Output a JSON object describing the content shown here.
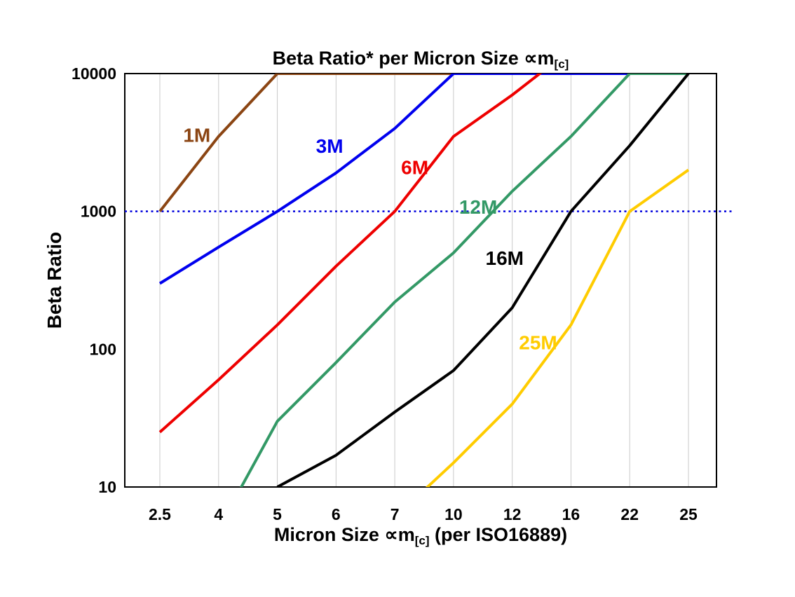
{
  "chart_data": {
    "type": "line",
    "title": {
      "text": "Beta Ratio* per Micron Size ∝m",
      "subscript": "[c]"
    },
    "xlabel": {
      "text": "Micron Size ∝m",
      "subscript": "[c]",
      "suffix": " (per ISO16889)"
    },
    "ylabel": "Beta Ratio",
    "x_categories": [
      "2.5",
      "4",
      "5",
      "6",
      "7",
      "10",
      "12",
      "16",
      "22",
      "25"
    ],
    "y_ticks": [
      "10",
      "100",
      "1000",
      "10000"
    ],
    "y_scale": "log",
    "ylim": [
      10,
      10000
    ],
    "grid": "vertical-major",
    "grid_color": "#c9c9c9",
    "axis_color": "#000000",
    "legend": "inline-labels",
    "reference_line": {
      "value": 1000,
      "color": "#0000dd",
      "style": "dotted"
    },
    "series": [
      {
        "name": "1M",
        "color": "#8B4513",
        "values": [
          1000,
          3500,
          10000,
          10000,
          10000,
          10000,
          10000,
          10000,
          10000,
          10000
        ],
        "label": {
          "x": 0.63,
          "y": 3600
        }
      },
      {
        "name": "3M",
        "color": "#0000EE",
        "values": [
          300,
          550,
          1000,
          1900,
          4000,
          10000,
          10000,
          10000,
          10000,
          10000
        ],
        "label": {
          "x": 2.89,
          "y": 3000
        }
      },
      {
        "name": "6M",
        "color": "#EE0000",
        "values": [
          25,
          60,
          150,
          400,
          1000,
          3500,
          7000,
          15000,
          15000,
          15000
        ],
        "label": {
          "x": 4.34,
          "y": 2100
        }
      },
      {
        "name": "12M",
        "color": "#339966",
        "values": [
          null,
          5,
          30,
          80,
          220,
          500,
          1400,
          3500,
          10000,
          10000
        ],
        "label": {
          "x": 5.42,
          "y": 1080
        }
      },
      {
        "name": "16M",
        "color": "#000000",
        "values": [
          null,
          null,
          10,
          17,
          35,
          70,
          200,
          1000,
          3000,
          10000
        ],
        "label": {
          "x": 5.87,
          "y": 460
        }
      },
      {
        "name": "25M",
        "color": "#FFCC00",
        "values": [
          null,
          null,
          null,
          null,
          6,
          15,
          40,
          150,
          1000,
          2000
        ],
        "label": {
          "x": 6.44,
          "y": 112
        }
      }
    ]
  }
}
